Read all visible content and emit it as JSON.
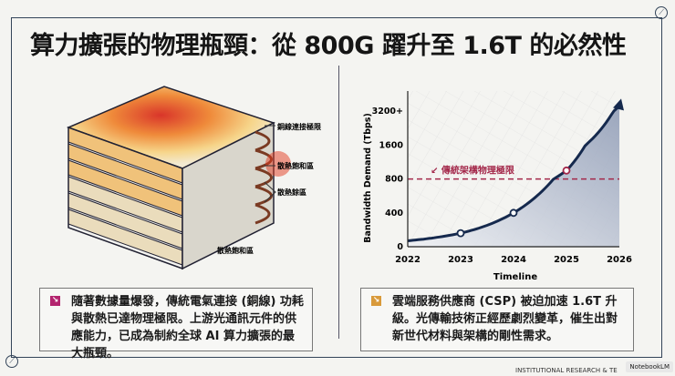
{
  "title": "算力擴張的物理瓶頸：從 800G 躍升至 1.6T 的必然性",
  "rack": {
    "labels": [
      "銅線連接極限",
      "散熱飽和區",
      "散熱餘區",
      "散熱飽和區"
    ]
  },
  "chart_data": {
    "type": "line",
    "xlabel": "Timeline",
    "ylabel": "Bandwidth Demand (Tbps)",
    "x_ticks": [
      "2022",
      "2023",
      "2024",
      "2025",
      "2026"
    ],
    "y_ticks": [
      "0",
      "400",
      "800",
      "1600",
      "3200+"
    ],
    "y_tick_values": [
      0,
      400,
      800,
      1600,
      3200
    ],
    "series": [
      {
        "name": "Bandwidth Demand",
        "x": [
          2022,
          2023,
          2024,
          2025,
          2026
        ],
        "values": [
          70,
          160,
          400,
          1000,
          3700
        ]
      }
    ],
    "markers": [
      {
        "x": 2023,
        "y": 160
      },
      {
        "x": 2024,
        "y": 400
      },
      {
        "x": 2025,
        "y": 1000
      }
    ],
    "threshold": {
      "value": 800,
      "label": "傳統架構物理極限",
      "color": "#a3284a"
    },
    "line_color": "#15294d"
  },
  "boxes": [
    {
      "text": "隨著數據量爆發，傳統電氣連接 (銅線) 功耗與散熱已達物理極限。上游光通訊元件的供應能力，已成為制約全球 AI 算力擴張的最大瓶頸。",
      "icon": "arrow-icon",
      "color": "#b3246e"
    },
    {
      "text": "雲端服務供應商 (CSP) 被迫加速 1.6T 升級。光傳輸技術正經歷劇烈變革，催生出對新世代材料與架構的剛性需求。",
      "icon": "arrow-icon",
      "color": "#d99a3a"
    }
  ],
  "footer": "INSTITUTIONAL RESEARCH & TE",
  "badge": "NotebookLM"
}
